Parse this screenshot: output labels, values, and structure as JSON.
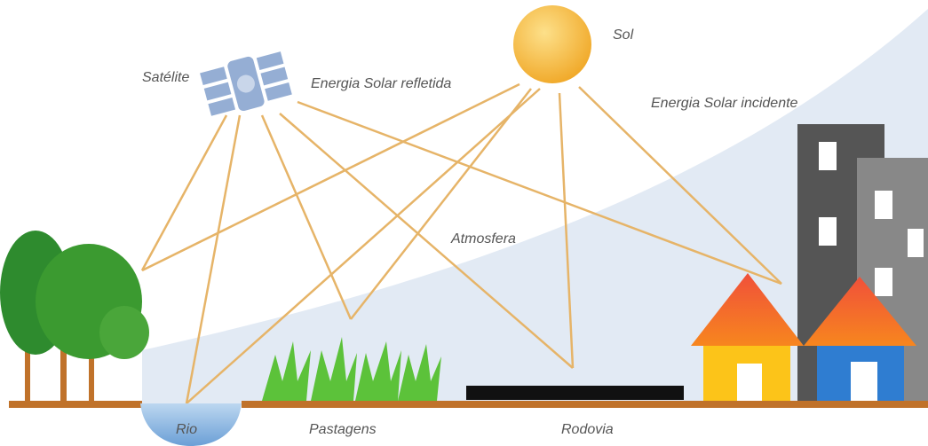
{
  "labels": {
    "satellite": "Satélite",
    "reflected": "Energia Solar refletida",
    "sun": "Sol",
    "incident": "Energia Solar incidente",
    "atmosphere": "Atmosfera",
    "river": "Rio",
    "pasture": "Pastagens",
    "road": "Rodovia"
  }
}
